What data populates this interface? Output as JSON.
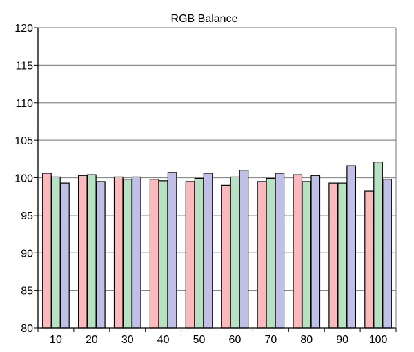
{
  "chart_data": {
    "type": "bar",
    "title": "RGB Balance",
    "xlabel": "",
    "ylabel": "",
    "ylim": [
      80,
      120
    ],
    "yticks": [
      80,
      85,
      90,
      95,
      100,
      105,
      110,
      115,
      120
    ],
    "grid": "horizontal",
    "legend": "none",
    "categories": [
      "10",
      "20",
      "30",
      "40",
      "50",
      "60",
      "70",
      "80",
      "90",
      "100"
    ],
    "series": [
      {
        "color": "#f9b9bd",
        "values": [
          100.6,
          100.3,
          100.1,
          99.8,
          99.5,
          99.0,
          99.5,
          100.4,
          99.3,
          98.2
        ]
      },
      {
        "color": "#b6e2c1",
        "values": [
          100.1,
          100.4,
          99.8,
          99.6,
          99.9,
          100.1,
          99.9,
          99.5,
          99.3,
          102.1
        ]
      },
      {
        "color": "#c0c0e6",
        "values": [
          99.3,
          99.5,
          100.1,
          100.7,
          100.6,
          101.0,
          100.6,
          100.3,
          101.6,
          99.8
        ]
      }
    ]
  }
}
